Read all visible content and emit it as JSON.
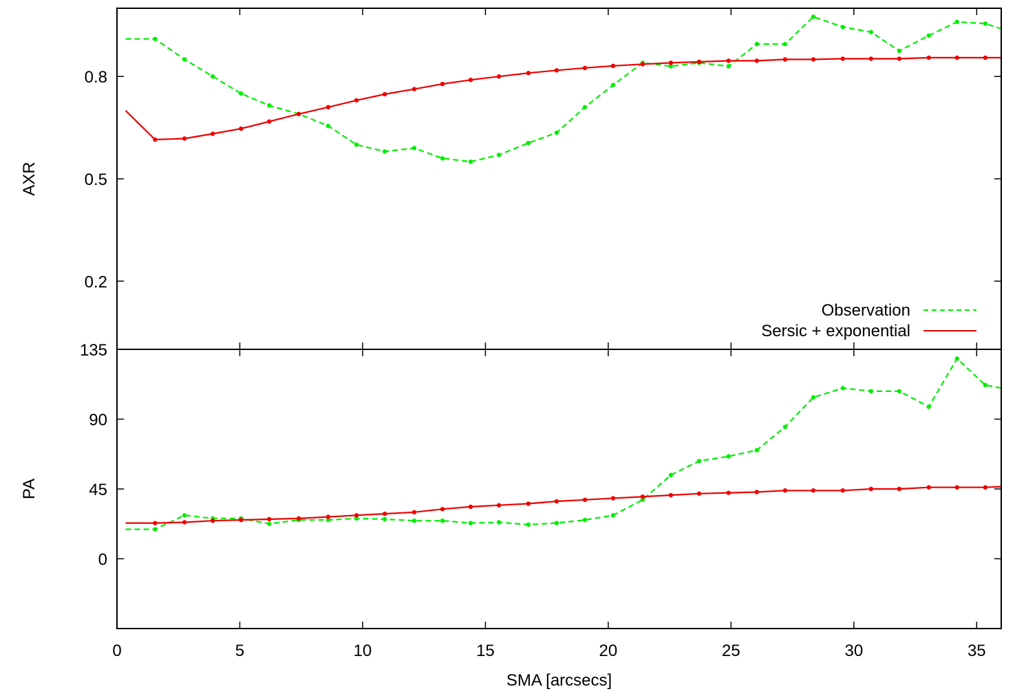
{
  "chart_data": [
    {
      "type": "line",
      "panel": "top",
      "ylabel": "AXR",
      "xlabel": "",
      "xlim": [
        0,
        36
      ],
      "ylim": [
        0.0,
        1.0
      ],
      "xticks": [
        0,
        5,
        10,
        15,
        20,
        25,
        30,
        35
      ],
      "yticks": [
        0.2,
        0.5,
        0.8
      ],
      "ytick_labels": [
        "0.2",
        "0.5",
        "0.8"
      ],
      "legend_position": "bottom-right",
      "series": [
        {
          "name": "Observation",
          "style": "dashed",
          "color": "#00ee00",
          "x": [
            0.35,
            1.55,
            2.75,
            3.9,
            5.05,
            6.2,
            7.4,
            8.6,
            9.75,
            10.9,
            12.1,
            13.25,
            14.4,
            15.55,
            16.75,
            17.9,
            19.05,
            20.2,
            21.4,
            22.55,
            23.7,
            24.9,
            26.05,
            27.2,
            28.35,
            29.55,
            30.7,
            31.85,
            33.05,
            34.2,
            35.35,
            36.0
          ],
          "y": [
            0.91,
            0.91,
            0.85,
            0.8,
            0.75,
            0.715,
            0.69,
            0.655,
            0.6,
            0.58,
            0.59,
            0.56,
            0.55,
            0.57,
            0.605,
            0.635,
            0.71,
            0.775,
            0.84,
            0.83,
            0.84,
            0.83,
            0.895,
            0.895,
            0.975,
            0.945,
            0.93,
            0.875,
            0.92,
            0.96,
            0.955,
            0.94
          ]
        },
        {
          "name": "Sersic + exponential",
          "style": "solid",
          "color": "#ee0000",
          "x": [
            0.35,
            1.55,
            2.75,
            3.9,
            5.05,
            6.2,
            7.4,
            8.6,
            9.75,
            10.9,
            12.1,
            13.25,
            14.4,
            15.55,
            16.75,
            17.9,
            19.05,
            20.2,
            21.4,
            22.55,
            23.7,
            24.9,
            26.05,
            27.2,
            28.35,
            29.55,
            30.7,
            31.85,
            33.05,
            34.2,
            35.35,
            36.0
          ],
          "y": [
            0.7,
            0.615,
            0.618,
            0.632,
            0.647,
            0.668,
            0.69,
            0.71,
            0.73,
            0.748,
            0.763,
            0.778,
            0.79,
            0.8,
            0.81,
            0.818,
            0.825,
            0.831,
            0.836,
            0.84,
            0.843,
            0.846,
            0.846,
            0.85,
            0.85,
            0.852,
            0.852,
            0.852,
            0.855,
            0.855,
            0.855,
            0.855
          ]
        }
      ]
    },
    {
      "type": "line",
      "panel": "bottom",
      "ylabel": "PA",
      "xlabel": "SMA [arcsecs]",
      "xlim": [
        0,
        36
      ],
      "ylim": [
        -45,
        135
      ],
      "xticks": [
        0,
        5,
        10,
        15,
        20,
        25,
        30,
        35
      ],
      "yticks": [
        0,
        45,
        90,
        135
      ],
      "ytick_labels": [
        "0",
        "45",
        "90",
        "135"
      ],
      "series": [
        {
          "name": "Observation",
          "style": "dashed",
          "color": "#00ee00",
          "x": [
            0.35,
            1.55,
            2.75,
            3.9,
            5.05,
            6.2,
            7.4,
            8.6,
            9.75,
            10.9,
            12.1,
            13.25,
            14.4,
            15.55,
            16.75,
            17.9,
            19.05,
            20.2,
            21.4,
            22.55,
            23.7,
            24.9,
            26.05,
            27.2,
            28.35,
            29.55,
            30.7,
            31.85,
            33.05,
            34.2,
            35.35,
            36.0
          ],
          "y": [
            19,
            19,
            28,
            26,
            26,
            22.5,
            25,
            25,
            26,
            25.5,
            24.5,
            24.5,
            23,
            23.5,
            22,
            23,
            25,
            28,
            38,
            54,
            63,
            66,
            70,
            85,
            104,
            110,
            108,
            108,
            98,
            129,
            112,
            110
          ]
        },
        {
          "name": "Sersic + exponential",
          "style": "solid",
          "color": "#ee0000",
          "x": [
            0.35,
            1.55,
            2.75,
            3.9,
            5.05,
            6.2,
            7.4,
            8.6,
            9.75,
            10.9,
            12.1,
            13.25,
            14.4,
            15.55,
            16.75,
            17.9,
            19.05,
            20.2,
            21.4,
            22.55,
            23.7,
            24.9,
            26.05,
            27.2,
            28.35,
            29.55,
            30.7,
            31.85,
            33.05,
            34.2,
            35.35,
            36.0
          ],
          "y": [
            23,
            23,
            23.5,
            24.5,
            25,
            25.5,
            26,
            27,
            28,
            29,
            30,
            32,
            33.5,
            34.5,
            35.5,
            37,
            38,
            39,
            40,
            41,
            42,
            42.5,
            43,
            44,
            44,
            44,
            45,
            45,
            46,
            46,
            46,
            46.5
          ]
        }
      ]
    }
  ]
}
